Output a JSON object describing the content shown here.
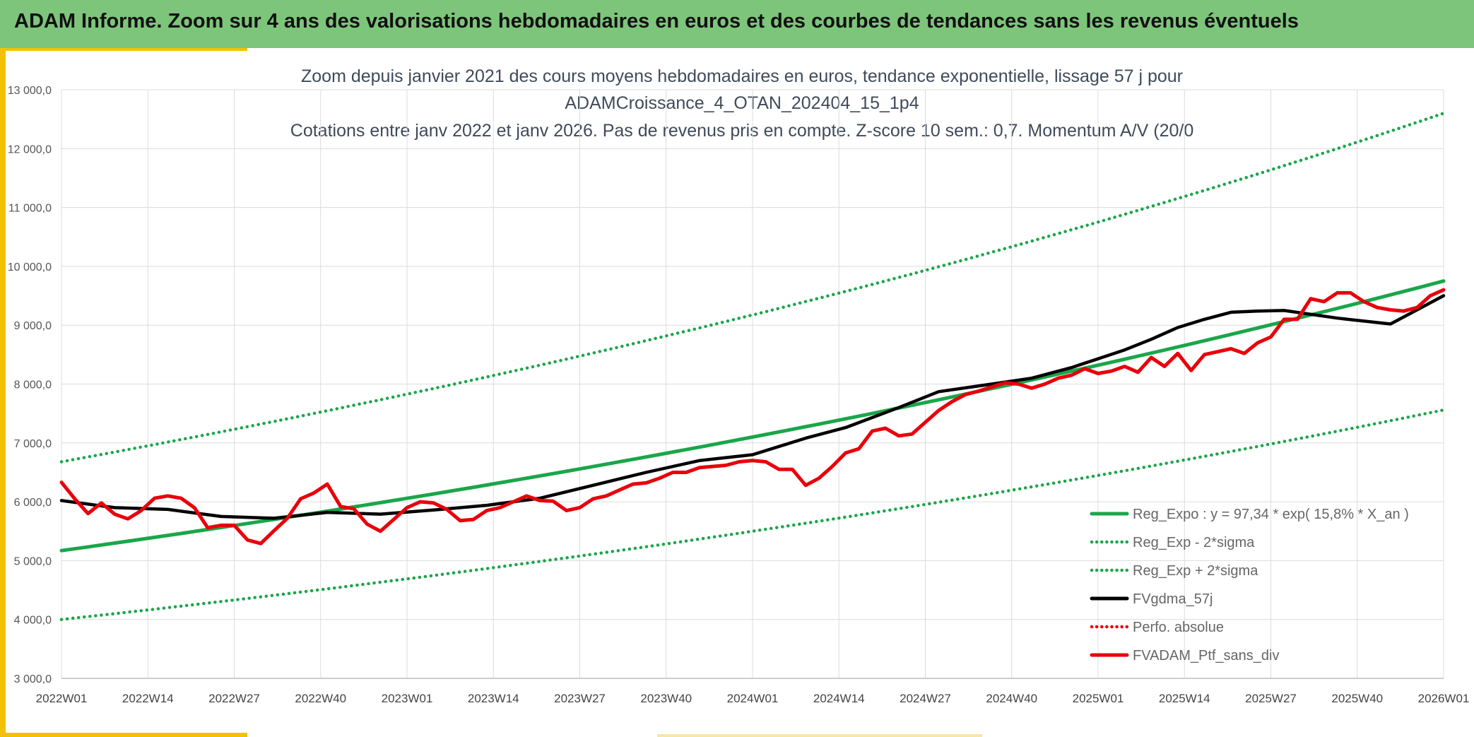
{
  "banner": {
    "title": "ADAM Informe. Zoom sur 4 ans des valorisations hebdomadaires en euros et des courbes de tendances sans les revenus éventuels"
  },
  "colors": {
    "banner": "#7dc57a",
    "accent": "#f2c200",
    "trend": "#1aa64a",
    "average": "#000000",
    "portfolio": "#e8000b"
  },
  "chart_data": {
    "type": "line",
    "title_lines": [
      "Zoom depuis janvier 2021 des cours moyens hebdomadaires en euros, tendance exponentielle, lissage 57 j pour",
      "ADAMCroissance_4_OTAN_202404_15_1p4",
      "Cotations entre janv 2022 et janv 2026. Pas de revenus pris en compte. Z-score 10 sem.: 0,7. Momentum A/V (20/0"
    ],
    "x_tick_labels": [
      "2022W01",
      "2022W14",
      "2022W27",
      "2022W40",
      "2023W01",
      "2023W14",
      "2023W27",
      "2023W40",
      "2024W01",
      "2024W14",
      "2024W27",
      "2024W40",
      "2025W01",
      "2025W14",
      "2025W27",
      "2025W40",
      "2026W01"
    ],
    "x_tick_weeks": [
      0,
      13,
      26,
      39,
      52,
      65,
      78,
      91,
      104,
      117,
      130,
      143,
      156,
      169,
      182,
      195,
      208
    ],
    "y_tick_labels": [
      "3 000,0",
      "4 000,0",
      "5 000,0",
      "6 000,0",
      "7 000,0",
      "8 000,0",
      "9 000,0",
      "10 000,0",
      "11 000,0",
      "12 000,0",
      "13 000,0"
    ],
    "y_tick_values": [
      3000,
      4000,
      5000,
      6000,
      7000,
      8000,
      9000,
      10000,
      11000,
      12000,
      13000
    ],
    "xlim": [
      0,
      208
    ],
    "ylim": [
      3000,
      13000
    ],
    "grid": true,
    "legend_position": "bottom-right",
    "series": [
      {
        "name": "Reg_Expo : y = 97,34 * exp( 15,8% *  X_an )",
        "style": "solid",
        "color": "#1aa64a",
        "x": [
          0,
          208
        ],
        "y": [
          5170,
          9750
        ],
        "curve": "exponential"
      },
      {
        "name": "Reg_Exp - 2*sigma",
        "style": "dotted",
        "color": "#1aa64a",
        "x": [
          0,
          208
        ],
        "y": [
          4000,
          7560
        ],
        "curve": "exponential"
      },
      {
        "name": "Reg_Exp + 2*sigma",
        "style": "dotted",
        "color": "#1aa64a",
        "x": [
          0,
          208
        ],
        "y": [
          6680,
          12600
        ],
        "curve": "exponential"
      },
      {
        "name": "FVgdma_57j",
        "style": "solid",
        "color": "#000000",
        "x": [
          0,
          8,
          16,
          24,
          32,
          40,
          48,
          56,
          64,
          72,
          80,
          88,
          96,
          104,
          112,
          118,
          126,
          132,
          140,
          146,
          152,
          156,
          160,
          164,
          168,
          172,
          176,
          180,
          184,
          192,
          200,
          208
        ],
        "y": [
          6020,
          5900,
          5870,
          5750,
          5720,
          5820,
          5790,
          5860,
          5940,
          6060,
          6280,
          6500,
          6700,
          6800,
          7080,
          7260,
          7600,
          7870,
          8000,
          8100,
          8280,
          8430,
          8580,
          8760,
          8960,
          9100,
          9220,
          9240,
          9250,
          9120,
          9020,
          9500
        ]
      },
      {
        "name": "Perfo. absolue",
        "style": "dotted",
        "color": "#e8000b",
        "x": [],
        "y": []
      },
      {
        "name": "FVADAM_Ptf_sans_div",
        "style": "solid",
        "color": "#e8000b",
        "x": [
          0,
          2,
          4,
          6,
          8,
          10,
          12,
          14,
          16,
          18,
          20,
          22,
          24,
          26,
          28,
          30,
          32,
          34,
          36,
          38,
          40,
          42,
          44,
          46,
          48,
          50,
          52,
          54,
          56,
          58,
          60,
          62,
          64,
          66,
          68,
          70,
          72,
          74,
          76,
          78,
          80,
          82,
          84,
          86,
          88,
          90,
          92,
          94,
          96,
          98,
          100,
          102,
          104,
          106,
          108,
          110,
          112,
          114,
          116,
          118,
          120,
          122,
          124,
          126,
          128,
          130,
          132,
          134,
          136,
          138,
          140,
          142,
          144,
          146,
          148,
          150,
          152,
          154,
          156,
          158,
          160,
          162,
          164,
          166,
          168,
          170,
          172,
          174,
          176,
          178,
          180,
          182,
          184,
          186,
          188,
          190,
          192,
          194,
          196,
          198,
          200,
          202,
          204,
          206,
          208
        ],
        "y": [
          6330,
          6050,
          5800,
          5980,
          5790,
          5710,
          5850,
          6060,
          6100,
          6060,
          5900,
          5560,
          5600,
          5600,
          5350,
          5290,
          5510,
          5720,
          6050,
          6150,
          6300,
          5920,
          5880,
          5620,
          5500,
          5700,
          5900,
          6000,
          5980,
          5870,
          5680,
          5700,
          5850,
          5900,
          6000,
          6100,
          6020,
          6010,
          5850,
          5900,
          6050,
          6100,
          6200,
          6300,
          6320,
          6400,
          6500,
          6500,
          6580,
          6600,
          6620,
          6680,
          6700,
          6680,
          6550,
          6550,
          6280,
          6400,
          6600,
          6830,
          6900,
          7200,
          7250,
          7120,
          7150,
          7350,
          7550,
          7700,
          7820,
          7880,
          7950,
          8020,
          8000,
          7930,
          8000,
          8100,
          8150,
          8260,
          8180,
          8220,
          8300,
          8200,
          8450,
          8300,
          8520,
          8230,
          8500,
          8550,
          8600,
          8520,
          8700,
          8800,
          9100,
          9100,
          9450,
          9400,
          9550,
          9550,
          9400,
          9300,
          9260,
          9240,
          9300,
          9500,
          9600
        ]
      }
    ]
  }
}
